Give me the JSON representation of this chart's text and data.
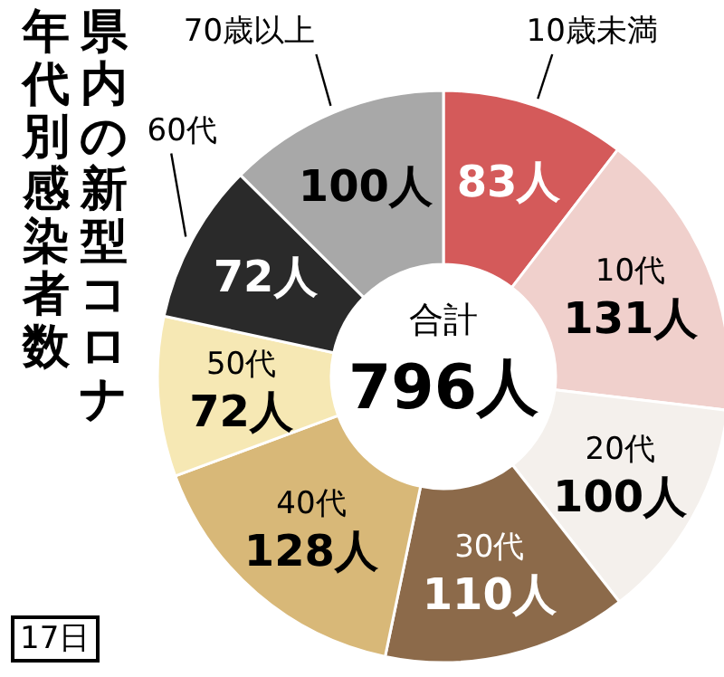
{
  "chart_data": {
    "type": "donut",
    "title": "県内の新型コロナ年代別感染者数",
    "categories": [
      "10歳未満",
      "10代",
      "20代",
      "30代",
      "40代",
      "50代",
      "60代",
      "70歳以上"
    ],
    "values": [
      83,
      131,
      100,
      110,
      128,
      72,
      72,
      100
    ],
    "value_labels": [
      "83人",
      "131人",
      "100人",
      "110人",
      "128人",
      "72人",
      "72人",
      "100人"
    ],
    "colors": [
      "#d45a5a",
      "#f0d0cc",
      "#f4f0ec",
      "#8c6a4a",
      "#d8b878",
      "#f6e8b4",
      "#2a2a2a",
      "#a8a8a8"
    ],
    "annotations": [
      "合計",
      "796人",
      "17日"
    ]
  }
}
